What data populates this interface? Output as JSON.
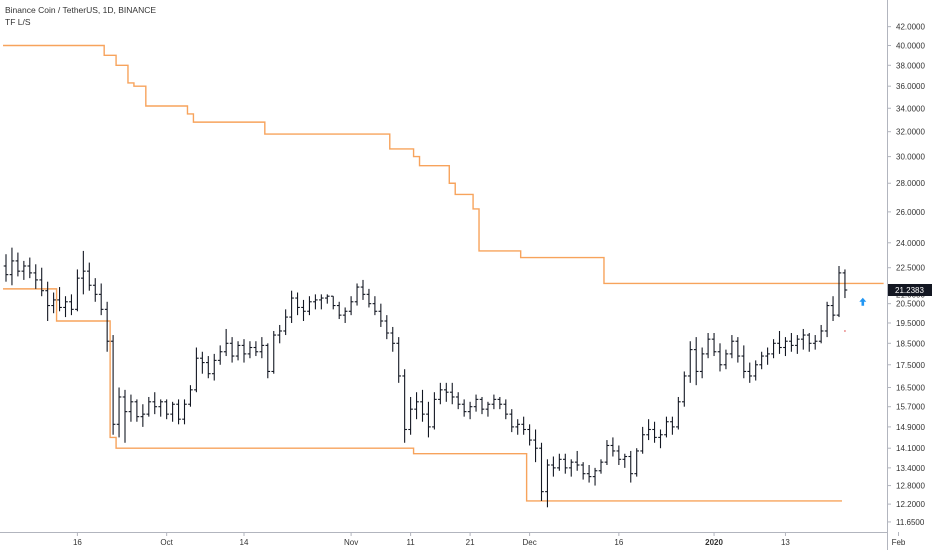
{
  "legend": {
    "symbol_line": "Binance Coin / TetherUS, 1D, BINANCE",
    "indicator": "TF L/S"
  },
  "colors": {
    "indicator_line": "#f7a35c",
    "bars": "#131722",
    "axis": "#b2b5be",
    "price_badge_bg": "#131722",
    "price_badge_text": "#ffffff",
    "arrow": "#2196f3"
  },
  "chart_data": {
    "type": "ohlc",
    "symbol": "Binance Coin / TetherUS",
    "interval": "1D",
    "exchange": "BINANCE",
    "scale": "log",
    "ylim": [
      11.35,
      45.0
    ],
    "y_ticks": [
      "42.0000",
      "40.0000",
      "38.0000",
      "36.0000",
      "34.0000",
      "32.0000",
      "30.0000",
      "28.0000",
      "26.0000",
      "24.0000",
      "22.5000",
      "21.0000",
      "20.5000",
      "19.5000",
      "18.5000",
      "17.5000",
      "16.5000",
      "15.7000",
      "14.9000",
      "14.1000",
      "13.4000",
      "12.8000",
      "12.2000",
      "11.6500"
    ],
    "x_ticks": [
      {
        "label": "16",
        "index": 0
      },
      {
        "label": "Oct",
        "index": 15
      },
      {
        "label": "14",
        "index": 28
      },
      {
        "label": "Nov",
        "index": 46
      },
      {
        "label": "11",
        "index": 56
      },
      {
        "label": "21",
        "index": 66
      },
      {
        "label": "Dec",
        "index": 76
      },
      {
        "label": "16",
        "index": 91
      },
      {
        "label": "2020",
        "index": 107,
        "bold": true
      },
      {
        "label": "13",
        "index": 119
      },
      {
        "label": "Feb",
        "index": 138
      }
    ],
    "first_index_offset": -12,
    "last_price": "21.2383",
    "last_price_value": 21.2383,
    "ohlc": [
      [
        22.6,
        23.3,
        21.7,
        22.1
      ],
      [
        22.1,
        23.7,
        21.5,
        22.9
      ],
      [
        22.9,
        23.4,
        22.0,
        22.3
      ],
      [
        22.3,
        22.9,
        21.8,
        22.6
      ],
      [
        22.6,
        23.1,
        21.9,
        22.2
      ],
      [
        22.2,
        22.7,
        21.3,
        21.8
      ],
      [
        21.8,
        22.5,
        20.9,
        21.2
      ],
      [
        21.2,
        21.7,
        19.6,
        20.4
      ],
      [
        20.4,
        21.1,
        20.0,
        20.7
      ],
      [
        20.7,
        21.4,
        20.1,
        20.3
      ],
      [
        20.3,
        20.9,
        19.8,
        20.6
      ],
      [
        20.6,
        21.0,
        19.9,
        20.2
      ],
      [
        20.2,
        22.4,
        20.1,
        21.9
      ],
      [
        21.9,
        23.5,
        21.0,
        22.3
      ],
      [
        22.3,
        22.8,
        21.2,
        21.5
      ],
      [
        21.5,
        21.9,
        20.6,
        21.0
      ],
      [
        21.0,
        21.6,
        19.9,
        20.2
      ],
      [
        20.2,
        20.6,
        18.1,
        18.6
      ],
      [
        18.6,
        18.9,
        14.6,
        15.0
      ],
      [
        15.0,
        16.5,
        14.5,
        16.1
      ],
      [
        16.1,
        16.4,
        14.3,
        15.5
      ],
      [
        15.5,
        16.2,
        15.1,
        15.9
      ],
      [
        15.9,
        16.0,
        15.1,
        15.3
      ],
      [
        15.3,
        15.8,
        14.9,
        15.4
      ],
      [
        15.4,
        16.1,
        15.3,
        15.9
      ],
      [
        15.9,
        16.3,
        15.4,
        15.7
      ],
      [
        15.7,
        16.0,
        15.3,
        15.9
      ],
      [
        15.9,
        16.0,
        15.2,
        15.4
      ],
      [
        15.4,
        15.9,
        15.1,
        15.8
      ],
      [
        15.8,
        16.0,
        15.0,
        15.2
      ],
      [
        15.2,
        16.0,
        15.0,
        15.8
      ],
      [
        15.8,
        16.6,
        15.7,
        16.4
      ],
      [
        16.4,
        18.3,
        16.3,
        17.8
      ],
      [
        17.8,
        18.1,
        17.1,
        17.6
      ],
      [
        17.6,
        17.9,
        16.9,
        17.1
      ],
      [
        17.1,
        18.0,
        16.8,
        17.7
      ],
      [
        17.7,
        18.4,
        17.5,
        18.1
      ],
      [
        18.1,
        19.2,
        17.9,
        18.5
      ],
      [
        18.5,
        18.8,
        17.6,
        17.9
      ],
      [
        17.9,
        18.6,
        17.7,
        18.4
      ],
      [
        18.4,
        18.7,
        17.6,
        18.0
      ],
      [
        18.0,
        18.6,
        17.8,
        18.3
      ],
      [
        18.3,
        18.6,
        17.9,
        18.1
      ],
      [
        18.1,
        18.8,
        17.8,
        18.4
      ],
      [
        18.4,
        18.5,
        16.9,
        17.2
      ],
      [
        17.2,
        19.1,
        17.1,
        18.9
      ],
      [
        18.9,
        19.4,
        18.5,
        19.1
      ],
      [
        19.1,
        20.2,
        18.9,
        19.8
      ],
      [
        19.8,
        21.2,
        19.5,
        20.8
      ],
      [
        20.8,
        21.1,
        19.9,
        20.3
      ],
      [
        20.3,
        20.7,
        19.6,
        20.1
      ],
      [
        20.1,
        20.9,
        19.9,
        20.6
      ],
      [
        20.6,
        21.0,
        20.2,
        20.7
      ],
      [
        20.7,
        21.0,
        20.2,
        20.8
      ],
      [
        20.8,
        21.0,
        20.5,
        20.9
      ],
      [
        20.9,
        20.9,
        20.2,
        20.4
      ],
      [
        20.4,
        20.6,
        19.7,
        19.9
      ],
      [
        19.9,
        20.3,
        19.5,
        20.1
      ],
      [
        20.1,
        20.9,
        19.9,
        20.6
      ],
      [
        20.6,
        21.6,
        20.4,
        21.4
      ],
      [
        21.4,
        21.8,
        20.7,
        21.0
      ],
      [
        21.0,
        21.3,
        20.3,
        20.5
      ],
      [
        20.5,
        20.9,
        19.9,
        20.1
      ],
      [
        20.1,
        20.5,
        19.3,
        19.6
      ],
      [
        19.6,
        19.9,
        18.7,
        19.0
      ],
      [
        19.0,
        19.3,
        18.1,
        18.5
      ],
      [
        18.5,
        18.8,
        16.7,
        17.0
      ],
      [
        17.0,
        17.3,
        14.3,
        14.8
      ],
      [
        14.8,
        16.1,
        14.6,
        15.6
      ],
      [
        15.6,
        16.3,
        15.2,
        15.9
      ],
      [
        15.9,
        16.4,
        15.1,
        15.4
      ],
      [
        15.4,
        15.9,
        14.5,
        14.9
      ],
      [
        14.9,
        16.3,
        14.8,
        16.0
      ],
      [
        16.0,
        16.7,
        15.8,
        16.4
      ],
      [
        16.4,
        16.7,
        15.9,
        16.3
      ],
      [
        16.3,
        16.7,
        15.8,
        16.1
      ],
      [
        16.1,
        16.3,
        15.6,
        15.8
      ],
      [
        15.8,
        16.0,
        15.3,
        15.5
      ],
      [
        15.5,
        15.9,
        15.2,
        15.7
      ],
      [
        15.7,
        16.2,
        15.5,
        16.0
      ],
      [
        16.0,
        16.1,
        15.4,
        15.6
      ],
      [
        15.6,
        15.9,
        15.3,
        15.8
      ],
      [
        15.8,
        16.2,
        15.6,
        16.0
      ],
      [
        16.0,
        16.1,
        15.6,
        15.8
      ],
      [
        15.8,
        16.0,
        15.2,
        15.4
      ],
      [
        15.4,
        15.6,
        14.7,
        14.9
      ],
      [
        14.9,
        15.2,
        14.6,
        15.0
      ],
      [
        15.0,
        15.3,
        14.6,
        14.8
      ],
      [
        14.8,
        15.0,
        14.2,
        14.4
      ],
      [
        14.4,
        14.8,
        13.6,
        14.1
      ],
      [
        14.1,
        14.3,
        12.3,
        12.6
      ],
      [
        12.6,
        13.7,
        12.1,
        13.5
      ],
      [
        13.5,
        13.8,
        13.1,
        13.4
      ],
      [
        13.4,
        13.9,
        13.3,
        13.7
      ],
      [
        13.7,
        13.9,
        13.2,
        13.4
      ],
      [
        13.4,
        13.7,
        13.1,
        13.6
      ],
      [
        13.6,
        14.0,
        13.3,
        13.5
      ],
      [
        13.5,
        13.6,
        13.0,
        13.2
      ],
      [
        13.2,
        13.5,
        12.9,
        13.1
      ],
      [
        13.1,
        13.4,
        12.8,
        13.3
      ],
      [
        13.3,
        13.7,
        13.2,
        13.6
      ],
      [
        13.6,
        14.4,
        13.5,
        14.2
      ],
      [
        14.2,
        14.5,
        13.8,
        14.0
      ],
      [
        14.0,
        14.2,
        13.5,
        13.7
      ],
      [
        13.7,
        13.9,
        13.4,
        13.8
      ],
      [
        13.8,
        14.0,
        12.9,
        13.2
      ],
      [
        13.2,
        14.1,
        13.1,
        14.0
      ],
      [
        14.0,
        14.9,
        13.9,
        14.6
      ],
      [
        14.6,
        15.2,
        14.4,
        14.8
      ],
      [
        14.8,
        15.1,
        14.3,
        14.5
      ],
      [
        14.5,
        14.8,
        14.1,
        14.6
      ],
      [
        14.6,
        15.3,
        14.5,
        15.1
      ],
      [
        15.1,
        15.3,
        14.6,
        14.9
      ],
      [
        14.9,
        16.1,
        14.8,
        15.9
      ],
      [
        15.9,
        17.2,
        15.7,
        17.0
      ],
      [
        17.0,
        18.6,
        16.7,
        18.2
      ],
      [
        18.2,
        18.8,
        16.6,
        17.2
      ],
      [
        17.2,
        18.3,
        16.9,
        18.0
      ],
      [
        18.0,
        19.0,
        17.8,
        18.7
      ],
      [
        18.7,
        19.0,
        17.9,
        18.1
      ],
      [
        18.1,
        18.5,
        17.2,
        17.5
      ],
      [
        17.5,
        18.2,
        17.3,
        18.0
      ],
      [
        18.0,
        18.9,
        17.8,
        18.6
      ],
      [
        18.6,
        18.8,
        17.6,
        17.9
      ],
      [
        17.9,
        18.4,
        16.9,
        17.2
      ],
      [
        17.2,
        17.6,
        16.7,
        17.0
      ],
      [
        17.0,
        17.7,
        16.8,
        17.5
      ],
      [
        17.5,
        18.1,
        17.3,
        17.9
      ],
      [
        17.9,
        18.3,
        17.5,
        18.0
      ],
      [
        18.0,
        18.7,
        17.8,
        18.5
      ],
      [
        18.5,
        19.1,
        18.0,
        18.3
      ],
      [
        18.3,
        18.8,
        17.9,
        18.6
      ],
      [
        18.6,
        19.0,
        18.1,
        18.4
      ],
      [
        18.4,
        18.9,
        18.0,
        18.7
      ],
      [
        18.7,
        19.2,
        18.2,
        18.9
      ],
      [
        18.9,
        19.0,
        18.1,
        18.5
      ],
      [
        18.5,
        18.9,
        18.2,
        18.6
      ],
      [
        18.6,
        19.4,
        18.5,
        19.1
      ],
      [
        19.1,
        20.6,
        18.8,
        20.4
      ],
      [
        20.4,
        20.9,
        19.6,
        19.9
      ],
      [
        19.9,
        22.6,
        19.8,
        22.2
      ],
      [
        22.2,
        22.4,
        20.8,
        21.2383
      ]
    ],
    "indicator_line": [
      21.3,
      21.3,
      21.3,
      21.3,
      21.3,
      21.3,
      21.3,
      21.3,
      21.3,
      19.6,
      19.6,
      19.6,
      19.6,
      19.6,
      19.6,
      19.6,
      19.6,
      19.6,
      14.5,
      14.1,
      14.1,
      14.1,
      14.1,
      14.1,
      14.1,
      14.1,
      14.1,
      14.1,
      14.1,
      14.1,
      14.1,
      14.1,
      14.1,
      14.1,
      14.1,
      14.1,
      14.1,
      14.1,
      14.1,
      14.1,
      14.1,
      14.1,
      14.1,
      14.1,
      14.1,
      14.1,
      14.1,
      14.1,
      14.1,
      14.1,
      14.1,
      14.1,
      14.1,
      14.1,
      14.1,
      14.1,
      14.1,
      14.1,
      14.1,
      14.1,
      14.1,
      14.1,
      14.1,
      14.1,
      14.1,
      14.1,
      14.1,
      14.1,
      14.1,
      13.9,
      13.9,
      13.9,
      13.9,
      13.9,
      13.9,
      13.9,
      13.9,
      13.9,
      13.9,
      13.9,
      13.9,
      13.9,
      13.9,
      13.9,
      13.9,
      13.9,
      13.9,
      13.9,
      12.3,
      12.3,
      12.3,
      12.3,
      12.3,
      12.3,
      12.3,
      12.3,
      12.3,
      12.3,
      12.3,
      12.3,
      12.3,
      12.3,
      12.3,
      12.3,
      12.3,
      12.3,
      12.3,
      12.3,
      12.3,
      12.3,
      12.3,
      12.3,
      12.3,
      12.3,
      12.3,
      12.3,
      12.3,
      12.3,
      12.3,
      12.3,
      12.3,
      12.3,
      12.3,
      12.3,
      12.3,
      12.3,
      12.3,
      12.3,
      12.3,
      12.3,
      12.3,
      12.3,
      12.3,
      12.3,
      12.3,
      12.3,
      12.3,
      12.3,
      12.3,
      12.3,
      12.3
    ],
    "upper_line": [
      40.0,
      40.0,
      40.0,
      40.0,
      40.0,
      40.0,
      40.0,
      40.0,
      40.0,
      40.0,
      40.0,
      40.0,
      40.0,
      40.0,
      40.0,
      40.0,
      40.0,
      39.0,
      39.0,
      38.0,
      38.0,
      36.3,
      36.0,
      36.0,
      34.2,
      34.2,
      34.2,
      34.2,
      34.2,
      34.2,
      34.2,
      33.5,
      32.8,
      32.8,
      32.8,
      32.8,
      32.8,
      32.8,
      32.8,
      32.8,
      32.8,
      32.8,
      32.8,
      32.8,
      31.8,
      31.8,
      31.8,
      31.8,
      31.8,
      31.8,
      31.8,
      31.8,
      31.8,
      31.8,
      31.8,
      31.8,
      31.8,
      31.8,
      31.8,
      31.8,
      31.8,
      31.8,
      31.8,
      31.8,
      31.8,
      30.6,
      30.6,
      30.6,
      30.6,
      30.0,
      29.3,
      29.3,
      29.3,
      29.3,
      29.3,
      28.0,
      27.2,
      27.2,
      27.2,
      26.2,
      23.5,
      23.5,
      23.5,
      23.5,
      23.5,
      23.5,
      23.5,
      23.1,
      23.1,
      23.1,
      23.1,
      23.1,
      23.1,
      23.1,
      23.1,
      23.1,
      23.1,
      23.1,
      23.1,
      23.1,
      23.1,
      21.6,
      21.6,
      21.6,
      21.6,
      21.6,
      21.6,
      21.6,
      21.6,
      21.6,
      21.6,
      21.6,
      21.6,
      21.6,
      21.6,
      21.6,
      21.6,
      21.6,
      21.6,
      21.6,
      21.6,
      21.6,
      21.6,
      21.6,
      21.6,
      21.6,
      21.6,
      21.6,
      21.6,
      21.6,
      21.6,
      21.6,
      21.6,
      21.6,
      21.6,
      21.6,
      21.6,
      21.6,
      21.6,
      21.6,
      21.6,
      21.6,
      21.6,
      21.6,
      21.6,
      21.6,
      21.6,
      21.6
    ],
    "markers": [
      {
        "type": "up-arrow",
        "index": 144,
        "price": 20.6
      },
      {
        "type": "dot",
        "index": 141,
        "price": 19.1
      }
    ]
  }
}
